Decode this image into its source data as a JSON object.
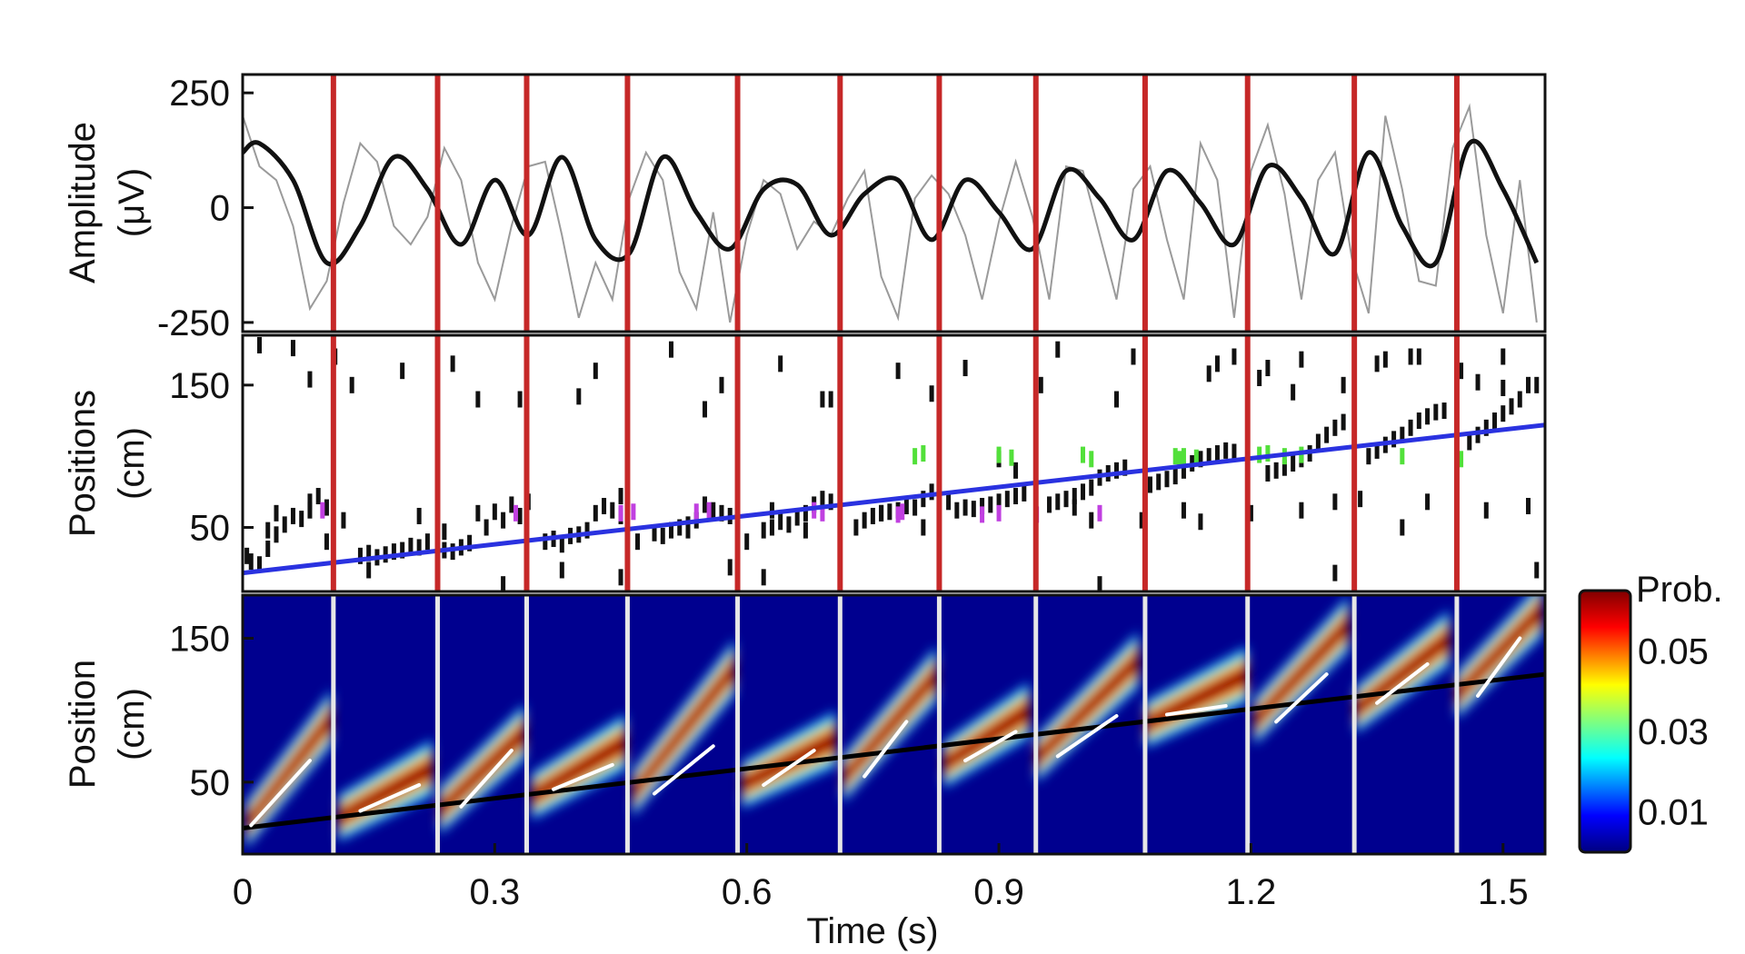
{
  "chart_data": [
    {
      "panel": "top",
      "type": "line",
      "ylabel_line1": "Amplitude",
      "ylabel_line2": "(μV)",
      "ylim": [
        -270,
        290
      ],
      "yticks": [
        250,
        0,
        -250
      ],
      "ytick_labels": [
        "250",
        "0",
        "-250"
      ],
      "series": [
        {
          "kind": "filtered",
          "color": "#111111",
          "x": [
            0.0,
            0.02,
            0.06,
            0.1,
            0.14,
            0.18,
            0.22,
            0.26,
            0.3,
            0.34,
            0.38,
            0.42,
            0.46,
            0.5,
            0.54,
            0.58,
            0.62,
            0.66,
            0.7,
            0.74,
            0.78,
            0.82,
            0.86,
            0.9,
            0.94,
            0.98,
            1.02,
            1.06,
            1.1,
            1.14,
            1.18,
            1.22,
            1.26,
            1.3,
            1.34,
            1.38,
            1.42,
            1.46,
            1.5,
            1.54
          ],
          "y": [
            120,
            140,
            60,
            -120,
            -40,
            110,
            40,
            -80,
            60,
            -60,
            110,
            -70,
            -100,
            110,
            -10,
            -90,
            40,
            50,
            -60,
            30,
            60,
            -70,
            60,
            -10,
            -90,
            80,
            20,
            -70,
            80,
            10,
            -80,
            90,
            20,
            -100,
            120,
            -40,
            -120,
            140,
            40,
            -120
          ]
        },
        {
          "kind": "raw",
          "color": "#9a9a9a",
          "x": [
            0.0,
            0.02,
            0.04,
            0.06,
            0.08,
            0.1,
            0.12,
            0.14,
            0.16,
            0.18,
            0.2,
            0.22,
            0.24,
            0.26,
            0.28,
            0.3,
            0.32,
            0.34,
            0.36,
            0.38,
            0.4,
            0.42,
            0.44,
            0.46,
            0.48,
            0.5,
            0.52,
            0.54,
            0.56,
            0.58,
            0.6,
            0.62,
            0.64,
            0.66,
            0.68,
            0.7,
            0.72,
            0.74,
            0.76,
            0.78,
            0.8,
            0.82,
            0.84,
            0.86,
            0.88,
            0.9,
            0.92,
            0.94,
            0.96,
            0.98,
            1.0,
            1.02,
            1.04,
            1.06,
            1.08,
            1.1,
            1.12,
            1.14,
            1.16,
            1.18,
            1.2,
            1.22,
            1.24,
            1.26,
            1.28,
            1.3,
            1.32,
            1.34,
            1.36,
            1.38,
            1.4,
            1.42,
            1.44,
            1.46,
            1.48,
            1.5,
            1.52,
            1.54
          ],
          "y": [
            200,
            90,
            60,
            -40,
            -220,
            -160,
            10,
            140,
            100,
            -40,
            -80,
            -20,
            130,
            60,
            -120,
            -200,
            -40,
            90,
            100,
            -60,
            -240,
            -120,
            -200,
            20,
            120,
            60,
            -140,
            -220,
            -10,
            -250,
            -60,
            60,
            30,
            -90,
            -30,
            -60,
            20,
            80,
            -150,
            -240,
            20,
            70,
            30,
            -60,
            -200,
            -30,
            100,
            -20,
            -200,
            90,
            80,
            -60,
            -200,
            40,
            90,
            -70,
            -200,
            140,
            60,
            -240,
            80,
            180,
            30,
            -200,
            60,
            120,
            -110,
            -230,
            200,
            40,
            -160,
            -170,
            130,
            220,
            -60,
            -230,
            60,
            -250
          ]
        }
      ]
    },
    {
      "panel": "middle",
      "type": "scatter",
      "ylabel_line1": "Positions",
      "ylabel_line2": "(cm)",
      "ylim": [
        5,
        185
      ],
      "yticks": [
        150,
        50
      ],
      "ytick_labels": [
        "150",
        "50"
      ],
      "trajectory": {
        "color": "#2a32e0",
        "x": [
          0.0,
          1.55
        ],
        "y": [
          18,
          122
        ]
      },
      "rasters": [
        {
          "color": "#111111",
          "x": [
            0.005,
            0.01,
            0.02,
            0.03,
            0.04,
            0.05,
            0.06,
            0.07,
            0.08,
            0.09,
            0.1,
            0.14,
            0.15,
            0.16,
            0.17,
            0.18,
            0.19,
            0.2,
            0.21,
            0.22,
            0.24,
            0.25,
            0.26,
            0.27,
            0.28,
            0.29,
            0.3,
            0.31,
            0.32,
            0.33,
            0.36,
            0.37,
            0.38,
            0.39,
            0.4,
            0.41,
            0.42,
            0.43,
            0.44,
            0.45,
            0.49,
            0.5,
            0.51,
            0.52,
            0.53,
            0.54,
            0.55,
            0.56,
            0.57,
            0.58,
            0.62,
            0.63,
            0.64,
            0.65,
            0.66,
            0.67,
            0.68,
            0.69,
            0.7,
            0.74,
            0.75,
            0.76,
            0.77,
            0.78,
            0.79,
            0.8,
            0.81,
            0.82,
            0.85,
            0.86,
            0.87,
            0.88,
            0.89,
            0.9,
            0.91,
            0.92,
            0.93,
            0.96,
            0.97,
            0.98,
            0.99,
            1.0,
            1.01,
            1.02,
            1.03,
            1.04,
            1.05,
            1.08,
            1.09,
            1.1,
            1.11,
            1.12,
            1.13,
            1.14,
            1.15,
            1.16,
            1.17,
            1.18,
            1.22,
            1.23,
            1.24,
            1.25,
            1.26,
            1.27,
            1.28,
            1.29,
            1.3,
            1.31,
            1.34,
            1.35,
            1.36,
            1.37,
            1.38,
            1.39,
            1.4,
            1.41,
            1.42,
            1.43,
            1.46,
            1.47,
            1.48,
            1.49,
            1.5,
            1.51,
            1.52,
            1.53,
            1.54,
            0.03,
            0.04,
            0.08,
            0.12,
            0.15,
            0.21,
            0.24,
            0.31,
            0.34,
            0.38,
            0.45,
            0.47,
            0.53,
            0.58,
            0.6,
            0.63,
            0.67,
            0.73,
            0.76,
            0.81,
            0.84,
            0.9,
            0.92,
            0.99,
            1.01,
            1.07,
            1.12,
            1.14,
            1.2,
            1.26,
            1.3,
            1.33,
            1.38,
            1.41,
            1.48,
            1.53,
            1.54,
            0.02,
            0.06,
            0.11,
            0.19,
            0.25,
            0.33,
            0.42,
            0.51,
            0.57,
            0.64,
            0.7,
            0.78,
            0.86,
            0.97,
            1.06,
            1.16,
            1.25,
            1.31,
            1.39,
            1.5,
            1.15,
            1.18,
            1.22,
            1.26,
            1.35,
            1.4,
            1.45,
            1.5,
            0.08,
            0.13,
            0.28,
            0.4,
            0.55,
            0.69,
            0.82,
            0.95,
            1.04,
            1.21,
            1.36,
            1.47,
            0.1,
            0.45,
            0.62,
            1.02,
            1.3
          ],
          "y": [
            30,
            26,
            24,
            35,
            45,
            52,
            58,
            56,
            68,
            72,
            64,
            30,
            32,
            29,
            31,
            33,
            34,
            37,
            36,
            40,
            34,
            33,
            36,
            39,
            60,
            50,
            61,
            55,
            66,
            58,
            40,
            42,
            38,
            44,
            45,
            48,
            60,
            65,
            62,
            58,
            46,
            44,
            48,
            50,
            52,
            55,
            66,
            62,
            60,
            58,
            48,
            50,
            54,
            52,
            57,
            60,
            66,
            70,
            68,
            55,
            58,
            60,
            61,
            62,
            65,
            64,
            70,
            75,
            62,
            64,
            63,
            65,
            66,
            68,
            70,
            72,
            74,
            66,
            68,
            70,
            72,
            75,
            78,
            85,
            88,
            90,
            92,
            80,
            82,
            84,
            86,
            90,
            95,
            98,
            100,
            102,
            104,
            103,
            88,
            90,
            92,
            95,
            98,
            102,
            110,
            115,
            120,
            124,
            100,
            104,
            108,
            112,
            115,
            120,
            125,
            128,
            131,
            132,
            110,
            115,
            120,
            125,
            130,
            135,
            140,
            150,
            150,
            48,
            60,
            62,
            55,
            20,
            58,
            47,
            10,
            68,
            20,
            72,
            40,
            48,
            22,
            40,
            62,
            48,
            50,
            60,
            50,
            68,
            98,
            90,
            64,
            55,
            55,
            62,
            54,
            60,
            62,
            68,
            70,
            50,
            68,
            62,
            65,
            20,
            178,
            176,
            170,
            160,
            165,
            140,
            160,
            175,
            150,
            165,
            140,
            160,
            162,
            175,
            170,
            165,
            145,
            150,
            170,
            148,
            158,
            170,
            162,
            168,
            165,
            170,
            160,
            170,
            154,
            150,
            140,
            142,
            133,
            140,
            144,
            150,
            140,
            155,
            168,
            152,
            40,
            15,
            15,
            10,
            18
          ]
        },
        {
          "color": "#c040e0",
          "x": [
            0.095,
            0.325,
            0.45,
            0.465,
            0.54,
            0.555,
            0.68,
            0.69,
            0.78,
            0.785,
            0.88,
            0.9,
            0.945,
            1.02
          ],
          "y": [
            62,
            60,
            60,
            61,
            61,
            62,
            62,
            60,
            59,
            61,
            59,
            60,
            59,
            60
          ]
        },
        {
          "color": "#52e03a",
          "x": [
            0.8,
            0.81,
            0.9,
            0.915,
            1.0,
            1.01,
            1.11,
            1.115,
            1.12,
            1.135,
            1.21,
            1.22,
            1.24,
            1.26,
            1.38,
            1.45
          ],
          "y": [
            100,
            102,
            101,
            99,
            101,
            98,
            100,
            98,
            100,
            99,
            101,
            102,
            100,
            101,
            100,
            98
          ]
        }
      ]
    },
    {
      "panel": "bottom",
      "type": "heatmap",
      "ylabel_line1": "Position",
      "ylabel_line2": "(cm)",
      "xlabel": "Time (s)",
      "xlim": [
        0,
        1.55
      ],
      "ylim": [
        0,
        180
      ],
      "yticks": [
        150,
        50
      ],
      "ytick_labels": [
        "150",
        "50"
      ],
      "xticks": [
        0,
        0.3,
        0.6,
        0.9,
        1.2,
        1.5
      ],
      "xtick_labels": [
        "0",
        "0.3",
        "0.6",
        "0.9",
        "1.2",
        "1.5"
      ],
      "colorbar": {
        "title": "Prob.",
        "ticks": [
          0.05,
          0.03,
          0.01
        ],
        "tick_labels": [
          "0.05",
          "0.03",
          "0.01"
        ],
        "range": [
          0.0,
          0.065
        ]
      },
      "trajectory": {
        "color": "#000000",
        "x": [
          0.0,
          1.55
        ],
        "y": [
          18,
          125
        ]
      },
      "sweeps": [
        {
          "t0": 0.0,
          "t1": 0.11,
          "p0": 20,
          "p1": 95
        },
        {
          "t0": 0.11,
          "t1": 0.23,
          "p0": 25,
          "p1": 60
        },
        {
          "t0": 0.23,
          "t1": 0.34,
          "p0": 30,
          "p1": 85
        },
        {
          "t0": 0.34,
          "t1": 0.46,
          "p0": 40,
          "p1": 78
        },
        {
          "t0": 0.46,
          "t1": 0.59,
          "p0": 42,
          "p1": 130
        },
        {
          "t0": 0.59,
          "t1": 0.71,
          "p0": 48,
          "p1": 80
        },
        {
          "t0": 0.71,
          "t1": 0.83,
          "p0": 52,
          "p1": 125
        },
        {
          "t0": 0.83,
          "t1": 0.94,
          "p0": 62,
          "p1": 100
        },
        {
          "t0": 0.94,
          "t1": 1.07,
          "p0": 66,
          "p1": 135
        },
        {
          "t0": 1.07,
          "t1": 1.2,
          "p0": 90,
          "p1": 125
        },
        {
          "t0": 1.2,
          "t1": 1.32,
          "p0": 92,
          "p1": 160
        },
        {
          "t0": 1.32,
          "t1": 1.44,
          "p0": 100,
          "p1": 150
        },
        {
          "t0": 1.44,
          "t1": 1.55,
          "p0": 110,
          "p1": 170
        }
      ],
      "fit_lines": [
        {
          "x": [
            0.01,
            0.08
          ],
          "y": [
            20,
            65
          ]
        },
        {
          "x": [
            0.14,
            0.21
          ],
          "y": [
            30,
            48
          ]
        },
        {
          "x": [
            0.26,
            0.32
          ],
          "y": [
            33,
            72
          ]
        },
        {
          "x": [
            0.37,
            0.44
          ],
          "y": [
            45,
            62
          ]
        },
        {
          "x": [
            0.49,
            0.56
          ],
          "y": [
            42,
            75
          ]
        },
        {
          "x": [
            0.62,
            0.68
          ],
          "y": [
            48,
            72
          ]
        },
        {
          "x": [
            0.74,
            0.79
          ],
          "y": [
            54,
            92
          ]
        },
        {
          "x": [
            0.86,
            0.92
          ],
          "y": [
            65,
            85
          ]
        },
        {
          "x": [
            0.97,
            1.04
          ],
          "y": [
            68,
            96
          ]
        },
        {
          "x": [
            1.1,
            1.17
          ],
          "y": [
            97,
            103
          ]
        },
        {
          "x": [
            1.23,
            1.29
          ],
          "y": [
            92,
            125
          ]
        },
        {
          "x": [
            1.35,
            1.41
          ],
          "y": [
            105,
            132
          ]
        },
        {
          "x": [
            1.47,
            1.52
          ],
          "y": [
            110,
            150
          ]
        }
      ]
    }
  ],
  "theta_troughs": {
    "x": [
      0.108,
      0.232,
      0.338,
      0.458,
      0.589,
      0.711,
      0.829,
      0.944,
      1.074,
      1.196,
      1.323,
      1.445
    ],
    "color_upper": "#c62828",
    "color_lower": "#e6e6e6"
  }
}
